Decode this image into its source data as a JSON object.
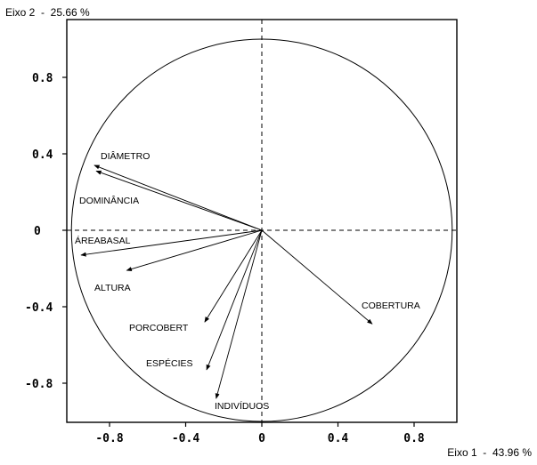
{
  "chart_data": {
    "type": "scatter",
    "subtype": "correlation-circle",
    "xlabel": "Eixo 1  -  43.96 %",
    "ylabel": "Eixo 2  -  25.66 %",
    "xlim": [
      -1.02,
      1.02
    ],
    "ylim": [
      -1.02,
      1.02
    ],
    "xticks": [
      -0.8,
      -0.4,
      0,
      0.4,
      0.8
    ],
    "xtick_labels": [
      "-0.8",
      "-0.4",
      "0",
      "0.4",
      "0.8"
    ],
    "yticks": [
      0.8,
      0.4,
      0,
      -0.4,
      -0.8
    ],
    "ytick_labels": [
      "0.8",
      "0.4",
      "0",
      "-0.4",
      "-0.8"
    ],
    "grid": false,
    "unit_circle": true,
    "origin_dashed_lines": true,
    "vectors": [
      {
        "name": "DIÂMETRO",
        "x": -0.88,
        "y": 0.34
      },
      {
        "name": "DOMINÂNCIA",
        "x": -0.87,
        "y": 0.31
      },
      {
        "name": "ÁREABASAL",
        "x": -0.95,
        "y": -0.13
      },
      {
        "name": "ALTURA",
        "x": -0.71,
        "y": -0.21
      },
      {
        "name": "PORCOBERT",
        "x": -0.3,
        "y": -0.48
      },
      {
        "name": "ESPÉCIES",
        "x": -0.29,
        "y": -0.73
      },
      {
        "name": "INDIVÍDUOS",
        "x": -0.24,
        "y": -0.88
      },
      {
        "name": "COBERTURA",
        "x": 0.58,
        "y": -0.49
      }
    ]
  }
}
